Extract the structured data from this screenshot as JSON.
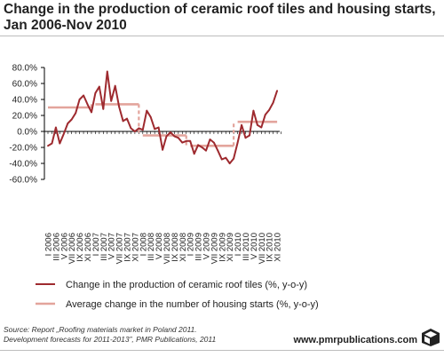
{
  "title_line1": "Change in the production of ceramic roof tiles and housing starts,",
  "title_line2": "Jan 2006-Nov 2010",
  "source_line1": "Source: Report „Roofing materials market in Poland 2011.",
  "source_line2": "Development forecasts for 2011-2013”, PMR Publications, 2011",
  "brand": "www.pmrpublications.com",
  "brand_icon": "cube-logo-icon",
  "colors": {
    "production": "#9e2a2f",
    "housing": "#e3a49c",
    "axis": "#000000",
    "grid": "#cccccc"
  },
  "chart_data": {
    "type": "line",
    "title": "Change in the production of ceramic roof tiles and housing starts, Jan 2006-Nov 2010",
    "xlabel": "",
    "ylabel": "",
    "ylim": [
      -60,
      80
    ],
    "yticks": [
      80,
      60,
      40,
      20,
      0,
      -20,
      -40,
      -60
    ],
    "ytick_labels": [
      "80.0%",
      "60.0%",
      "40.0%",
      "20.0%",
      "0.0%",
      "-20.0%",
      "-40.0%",
      "-60.0%"
    ],
    "grid": false,
    "legend_position": "bottom",
    "x_tick_labels": [
      "I 2006",
      "III 2006",
      "V 2006",
      "VII 2006",
      "IX 2006",
      "XI 2006",
      "I 2007",
      "III 2007",
      "V 2007",
      "VII 2007",
      "IX 2007",
      "XI 2007",
      "I 2008",
      "III 2008",
      "V 2008",
      "VII 2008",
      "IX 2008",
      "XI 2008",
      "I 2009",
      "III 2009",
      "V 2009",
      "VII 2009",
      "IX 2009",
      "XI 2009",
      "I 2010",
      "III 2010",
      "V 2010",
      "VII 2010",
      "IX 2010",
      "XI 2010"
    ],
    "series": [
      {
        "name": "Change in the production of ceramic roof tiles (%, y-o-y)",
        "values": [
          -18,
          -15,
          5,
          -15,
          -3,
          10,
          15,
          23,
          40,
          45,
          34,
          24,
          48,
          56,
          28,
          75,
          38,
          57,
          31,
          13,
          16,
          4,
          0,
          4,
          2,
          26,
          18,
          3,
          5,
          -23,
          -6,
          -1,
          -6,
          -8,
          -14,
          -12,
          -12,
          -28,
          -17,
          -20,
          -24,
          -10,
          -14,
          -24,
          -35,
          -33,
          -40,
          -34,
          -14,
          8,
          -8,
          -5,
          26,
          8,
          5,
          21,
          27,
          36,
          51
        ]
      },
      {
        "name": "Average change in the number of housing starts (%, y-o-y)",
        "segments": [
          {
            "period": "2006",
            "value": 30
          },
          {
            "period": "2007",
            "value": 34
          },
          {
            "period": "2008",
            "value": -5
          },
          {
            "period": "2009",
            "value": -18
          },
          {
            "period": "2010",
            "value": 12
          }
        ]
      }
    ]
  }
}
